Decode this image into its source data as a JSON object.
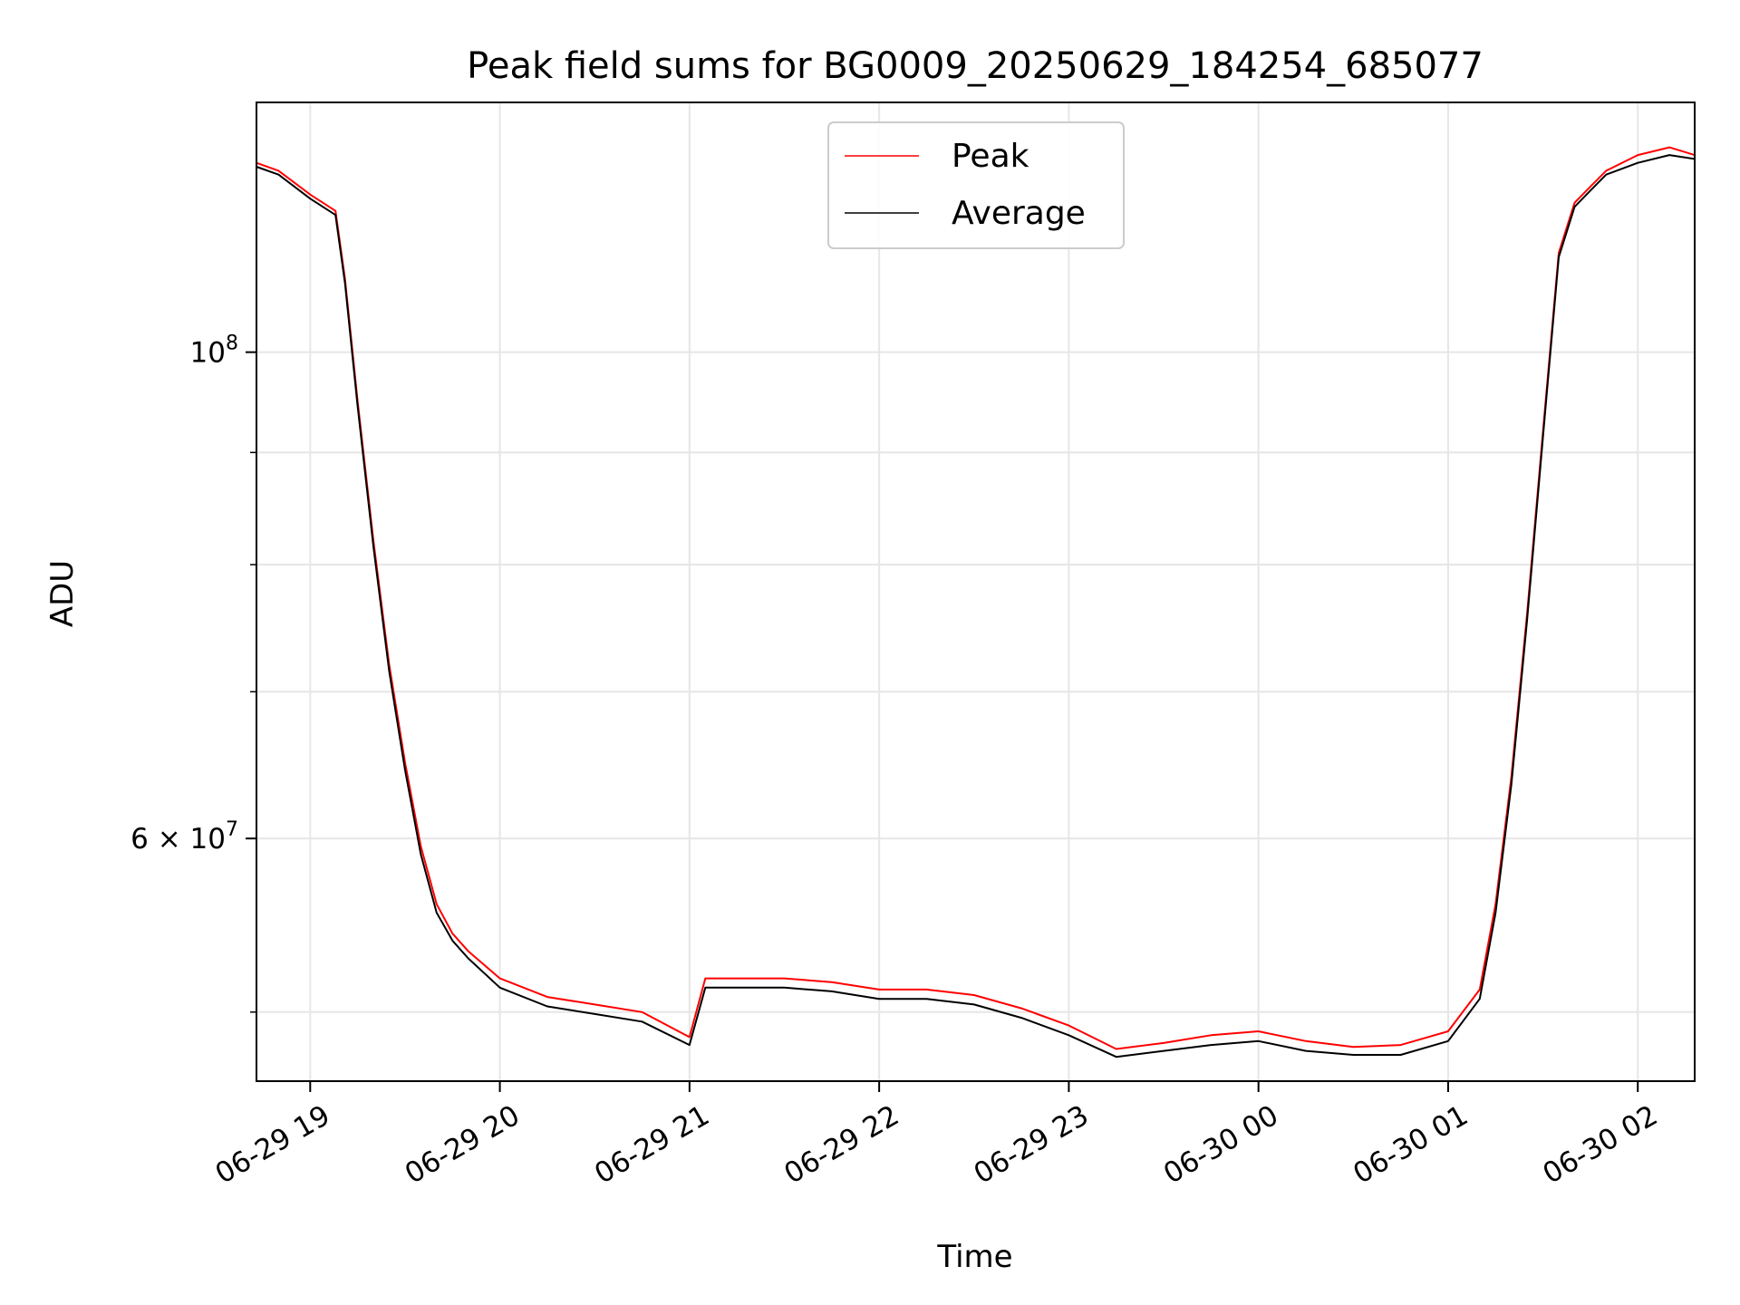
{
  "chart_data": {
    "type": "line",
    "title": "Peak field sums for BG0009_20250629_184254_685077",
    "xlabel": "Time",
    "ylabel": "ADU",
    "yscale": "log",
    "xlim": [
      "2025-06-29 18:43",
      "2025-06-30 02:18"
    ],
    "ylim": [
      46500000,
      130000000
    ],
    "x_ticks": [
      {
        "value": "2025-06-29 19:00",
        "label": "06-29 19"
      },
      {
        "value": "2025-06-29 20:00",
        "label": "06-29 20"
      },
      {
        "value": "2025-06-29 21:00",
        "label": "06-29 21"
      },
      {
        "value": "2025-06-29 22:00",
        "label": "06-29 22"
      },
      {
        "value": "2025-06-29 23:00",
        "label": "06-29 23"
      },
      {
        "value": "2025-06-30 00:00",
        "label": "06-30 00"
      },
      {
        "value": "2025-06-30 01:00",
        "label": "06-30 01"
      },
      {
        "value": "2025-06-30 02:00",
        "label": "06-30 02"
      }
    ],
    "y_major_ticks": [
      {
        "value": 100000000,
        "base": "10",
        "exp": "8",
        "coef": ""
      },
      {
        "value": 60000000,
        "base": "10",
        "exp": "7",
        "coef": "6 × "
      }
    ],
    "y_minor_ticks": [
      50000000,
      70000000,
      80000000,
      90000000
    ],
    "grid": true,
    "legend": {
      "position": "top-center"
    },
    "series": [
      {
        "name": "Peak",
        "color": "#ff0000",
        "x": [
          "2025-06-29 18:43",
          "2025-06-29 18:50",
          "2025-06-29 19:00",
          "2025-06-29 19:08",
          "2025-06-29 19:11",
          "2025-06-29 19:15",
          "2025-06-29 19:20",
          "2025-06-29 19:25",
          "2025-06-29 19:30",
          "2025-06-29 19:35",
          "2025-06-29 19:40",
          "2025-06-29 19:45",
          "2025-06-29 19:50",
          "2025-06-29 20:00",
          "2025-06-29 20:15",
          "2025-06-29 20:30",
          "2025-06-29 20:45",
          "2025-06-29 21:00",
          "2025-06-29 21:05",
          "2025-06-29 21:15",
          "2025-06-29 21:30",
          "2025-06-29 21:45",
          "2025-06-29 22:00",
          "2025-06-29 22:15",
          "2025-06-29 22:30",
          "2025-06-29 22:45",
          "2025-06-29 23:00",
          "2025-06-29 23:15",
          "2025-06-29 23:30",
          "2025-06-29 23:45",
          "2025-06-30 00:00",
          "2025-06-30 00:15",
          "2025-06-30 00:30",
          "2025-06-30 00:45",
          "2025-06-30 01:00",
          "2025-06-30 01:10",
          "2025-06-30 01:15",
          "2025-06-30 01:20",
          "2025-06-30 01:25",
          "2025-06-30 01:30",
          "2025-06-30 01:35",
          "2025-06-30 01:40",
          "2025-06-30 01:45",
          "2025-06-30 01:50",
          "2025-06-30 02:00",
          "2025-06-30 02:10",
          "2025-06-30 02:18"
        ],
        "y": [
          122000000,
          121000000,
          118000000,
          116000000,
          108000000,
          95000000,
          82000000,
          72000000,
          65000000,
          59500000,
          56000000,
          54300000,
          53300000,
          51800000,
          50800000,
          50400000,
          50000000,
          48700000,
          51800000,
          51800000,
          51800000,
          51600000,
          51200000,
          51200000,
          50900000,
          50200000,
          49300000,
          48100000,
          48400000,
          48800000,
          49000000,
          48500000,
          48200000,
          48300000,
          49000000,
          51200000,
          56000000,
          64000000,
          76000000,
          92000000,
          111000000,
          117000000,
          119000000,
          121000000,
          123000000,
          124000000,
          123000000
        ]
      },
      {
        "name": "Average",
        "color": "#000000",
        "x": [
          "2025-06-29 18:43",
          "2025-06-29 18:50",
          "2025-06-29 19:00",
          "2025-06-29 19:08",
          "2025-06-29 19:11",
          "2025-06-29 19:15",
          "2025-06-29 19:20",
          "2025-06-29 19:25",
          "2025-06-29 19:30",
          "2025-06-29 19:35",
          "2025-06-29 19:40",
          "2025-06-29 19:45",
          "2025-06-29 19:50",
          "2025-06-29 20:00",
          "2025-06-29 20:15",
          "2025-06-29 20:30",
          "2025-06-29 20:45",
          "2025-06-29 21:00",
          "2025-06-29 21:05",
          "2025-06-29 21:15",
          "2025-06-29 21:30",
          "2025-06-29 21:45",
          "2025-06-29 22:00",
          "2025-06-29 22:15",
          "2025-06-29 22:30",
          "2025-06-29 22:45",
          "2025-06-29 23:00",
          "2025-06-29 23:15",
          "2025-06-29 23:30",
          "2025-06-29 23:45",
          "2025-06-30 00:00",
          "2025-06-30 00:15",
          "2025-06-30 00:30",
          "2025-06-30 00:45",
          "2025-06-30 01:00",
          "2025-06-30 01:10",
          "2025-06-30 01:15",
          "2025-06-30 01:20",
          "2025-06-30 01:25",
          "2025-06-30 01:30",
          "2025-06-30 01:35",
          "2025-06-30 01:40",
          "2025-06-30 01:45",
          "2025-06-30 01:50",
          "2025-06-30 02:00",
          "2025-06-30 02:10",
          "2025-06-30 02:18"
        ],
        "y": [
          121500000,
          120500000,
          117500000,
          115500000,
          107500000,
          94500000,
          81500000,
          71500000,
          64500000,
          59000000,
          55500000,
          53900000,
          52900000,
          51300000,
          50300000,
          49900000,
          49500000,
          48300000,
          51300000,
          51300000,
          51300000,
          51100000,
          50700000,
          50700000,
          50400000,
          49700000,
          48800000,
          47700000,
          48000000,
          48300000,
          48500000,
          48000000,
          47800000,
          47800000,
          48500000,
          50700000,
          55500000,
          63500000,
          75500000,
          91500000,
          110500000,
          116500000,
          118500000,
          120500000,
          122000000,
          123000000,
          122500000
        ]
      }
    ]
  }
}
